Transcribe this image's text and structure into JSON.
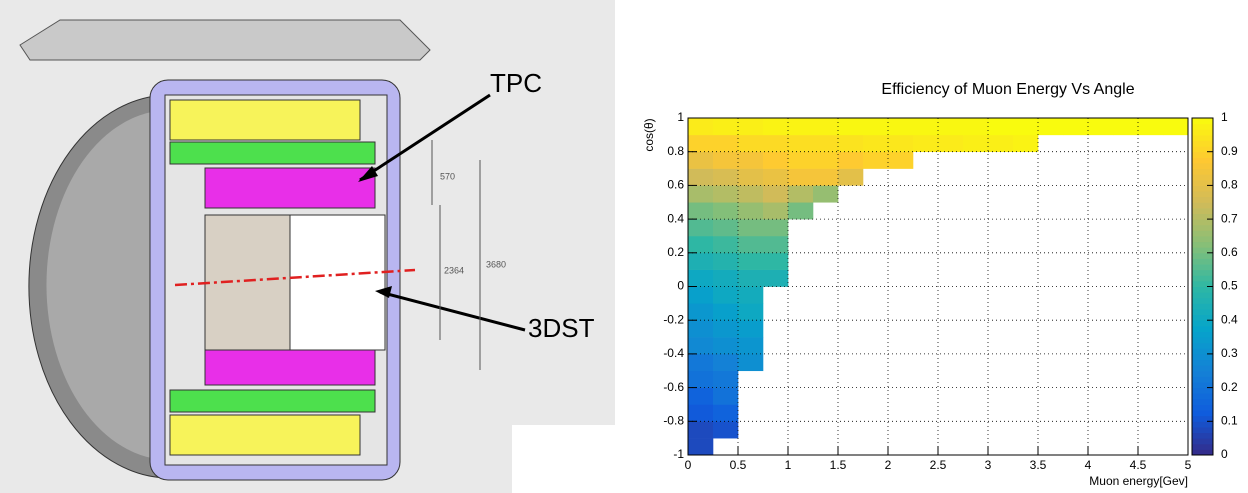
{
  "diagram": {
    "labels": [
      "TPC",
      "3DST"
    ],
    "dimensions": [
      "570",
      "3680",
      "2364"
    ]
  },
  "chart_data": {
    "type": "heatmap",
    "title": "Efficiency of Muon Energy Vs Angle",
    "x_label": "Muon energy[Gev]",
    "y_label": "cos(θ)",
    "x_bins": [
      0,
      0.25,
      0.5,
      0.75,
      1,
      1.25,
      1.5,
      1.75,
      2,
      2.25,
      2.5,
      2.75,
      3,
      3.25,
      3.5,
      3.75,
      4,
      4.25,
      4.5,
      4.75,
      5
    ],
    "y_bins": [
      -1,
      -0.9,
      -0.8,
      -0.7,
      -0.6,
      -0.5,
      -0.4,
      -0.3,
      -0.2,
      -0.1,
      0,
      0.1,
      0.2,
      0.3,
      0.4,
      0.5,
      0.6,
      0.7,
      0.8,
      0.9,
      1
    ],
    "z": [
      [
        0.08,
        null,
        null,
        null,
        null,
        null,
        null,
        null,
        null,
        null,
        null,
        null,
        null,
        null,
        null,
        null,
        null,
        null,
        null,
        null
      ],
      [
        0.08,
        0.1,
        null,
        null,
        null,
        null,
        null,
        null,
        null,
        null,
        null,
        null,
        null,
        null,
        null,
        null,
        null,
        null,
        null,
        null
      ],
      [
        0.12,
        0.15,
        null,
        null,
        null,
        null,
        null,
        null,
        null,
        null,
        null,
        null,
        null,
        null,
        null,
        null,
        null,
        null,
        null,
        null
      ],
      [
        0.15,
        0.2,
        null,
        null,
        null,
        null,
        null,
        null,
        null,
        null,
        null,
        null,
        null,
        null,
        null,
        null,
        null,
        null,
        null,
        null
      ],
      [
        0.2,
        0.22,
        null,
        null,
        null,
        null,
        null,
        null,
        null,
        null,
        null,
        null,
        null,
        null,
        null,
        null,
        null,
        null,
        null,
        null
      ],
      [
        0.22,
        0.25,
        0.3,
        null,
        null,
        null,
        null,
        null,
        null,
        null,
        null,
        null,
        null,
        null,
        null,
        null,
        null,
        null,
        null,
        null
      ],
      [
        0.28,
        0.3,
        0.32,
        null,
        null,
        null,
        null,
        null,
        null,
        null,
        null,
        null,
        null,
        null,
        null,
        null,
        null,
        null,
        null,
        null
      ],
      [
        0.3,
        0.33,
        0.35,
        null,
        null,
        null,
        null,
        null,
        null,
        null,
        null,
        null,
        null,
        null,
        null,
        null,
        null,
        null,
        null,
        null
      ],
      [
        0.33,
        0.36,
        0.4,
        null,
        null,
        null,
        null,
        null,
        null,
        null,
        null,
        null,
        null,
        null,
        null,
        null,
        null,
        null,
        null,
        null
      ],
      [
        0.36,
        0.4,
        0.42,
        null,
        null,
        null,
        null,
        null,
        null,
        null,
        null,
        null,
        null,
        null,
        null,
        null,
        null,
        null,
        null,
        null
      ],
      [
        0.4,
        0.42,
        0.45,
        0.45,
        null,
        null,
        null,
        null,
        null,
        null,
        null,
        null,
        null,
        null,
        null,
        null,
        null,
        null,
        null,
        null
      ],
      [
        0.45,
        0.47,
        0.5,
        0.5,
        null,
        null,
        null,
        null,
        null,
        null,
        null,
        null,
        null,
        null,
        null,
        null,
        null,
        null,
        null,
        null
      ],
      [
        0.5,
        0.52,
        0.55,
        0.55,
        null,
        null,
        null,
        null,
        null,
        null,
        null,
        null,
        null,
        null,
        null,
        null,
        null,
        null,
        null,
        null
      ],
      [
        0.55,
        0.57,
        0.6,
        0.6,
        null,
        null,
        null,
        null,
        null,
        null,
        null,
        null,
        null,
        null,
        null,
        null,
        null,
        null,
        null,
        null
      ],
      [
        0.6,
        0.62,
        0.65,
        0.68,
        0.6,
        null,
        null,
        null,
        null,
        null,
        null,
        null,
        null,
        null,
        null,
        null,
        null,
        null,
        null,
        null
      ],
      [
        0.68,
        0.7,
        0.72,
        0.75,
        0.7,
        0.65,
        null,
        null,
        null,
        null,
        null,
        null,
        null,
        null,
        null,
        null,
        null,
        null,
        null,
        null
      ],
      [
        0.75,
        0.77,
        0.8,
        0.82,
        0.85,
        0.85,
        0.8,
        null,
        null,
        null,
        null,
        null,
        null,
        null,
        null,
        null,
        null,
        null,
        null,
        null
      ],
      [
        0.82,
        0.85,
        0.85,
        0.88,
        0.9,
        0.9,
        0.88,
        0.9,
        0.9,
        null,
        null,
        null,
        null,
        null,
        null,
        null,
        null,
        null,
        null,
        null
      ],
      [
        0.9,
        0.9,
        0.92,
        0.92,
        0.93,
        0.93,
        0.94,
        0.95,
        0.95,
        0.96,
        0.96,
        0.97,
        0.97,
        0.98,
        null,
        null,
        null,
        null,
        null,
        null
      ],
      [
        0.96,
        0.97,
        0.97,
        0.98,
        0.98,
        0.98,
        0.99,
        0.99,
        0.99,
        0.99,
        0.99,
        0.99,
        1,
        1,
        1,
        1,
        1,
        1,
        1,
        1
      ]
    ],
    "xlim": [
      0,
      5
    ],
    "ylim": [
      -1,
      1
    ],
    "xticks": [
      0,
      0.5,
      1,
      1.5,
      2,
      2.5,
      3,
      3.5,
      4,
      4.5,
      5
    ],
    "yticks": [
      -1,
      -0.8,
      -0.6,
      -0.4,
      -0.2,
      0,
      0.2,
      0.4,
      0.6,
      0.8,
      1
    ],
    "zlim": [
      0,
      1
    ],
    "zticks": [
      0,
      0.1,
      0.2,
      0.3,
      0.4,
      0.5,
      0.6,
      0.7,
      0.8,
      0.9,
      1
    ],
    "colorscale": [
      "#352a87",
      "#0f5cdd",
      "#1481d6",
      "#06a4ca",
      "#2eb7a4",
      "#87bf77",
      "#d1bb59",
      "#fec832",
      "#f9fb0e"
    ],
    "grid": true
  }
}
